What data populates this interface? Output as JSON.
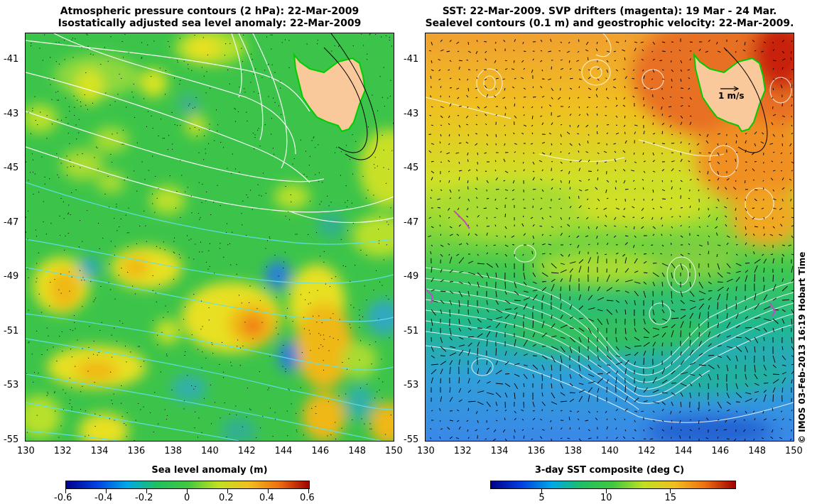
{
  "left_panel": {
    "title_line1": "Atmospheric pressure contours (2 hPa): 22-Mar-2009",
    "title_line2": "Isostatically adjusted sea level anomaly: 22-Mar-2009",
    "colorbar": {
      "label": "Sea level anomaly (m)",
      "ticks": [
        "-0.6",
        "-0.4",
        "-0.2",
        "0",
        "0.2",
        "0.4",
        "0.6"
      ],
      "range": [
        -0.6,
        0.6
      ]
    }
  },
  "right_panel": {
    "title_line1": "SST: 22-Mar-2009. SVP drifters (magenta): 19 Mar - 24 Mar.",
    "title_line2": "Sealevel contours (0.1 m) and geostrophic velocity: 22-Mar-2009.",
    "scale_label": "1 m/s",
    "colorbar": {
      "label": "3-day SST composite (deg C)",
      "ticks": [
        "5",
        "10",
        "15"
      ],
      "range": [
        1,
        20
      ]
    }
  },
  "axes": {
    "lon_ticks": [
      "130",
      "132",
      "134",
      "136",
      "138",
      "140",
      "142",
      "144",
      "146",
      "148",
      "150"
    ],
    "lat_ticks": [
      "-41",
      "-43",
      "-45",
      "-47",
      "-49",
      "-51",
      "-53",
      "-55"
    ],
    "lon_range": [
      130,
      150
    ],
    "lat_range": [
      -55,
      -40
    ]
  },
  "credit": "© IMOS 03-Feb-2013 16:19 Hobart Time",
  "colors": {
    "land": "#f9c89b",
    "land_outline": "#00cc00",
    "drifter": "#cc44cc",
    "sla_background": "#44c844",
    "sst_warm": "#e8701a",
    "sst_cool": "#3a9ff0"
  }
}
